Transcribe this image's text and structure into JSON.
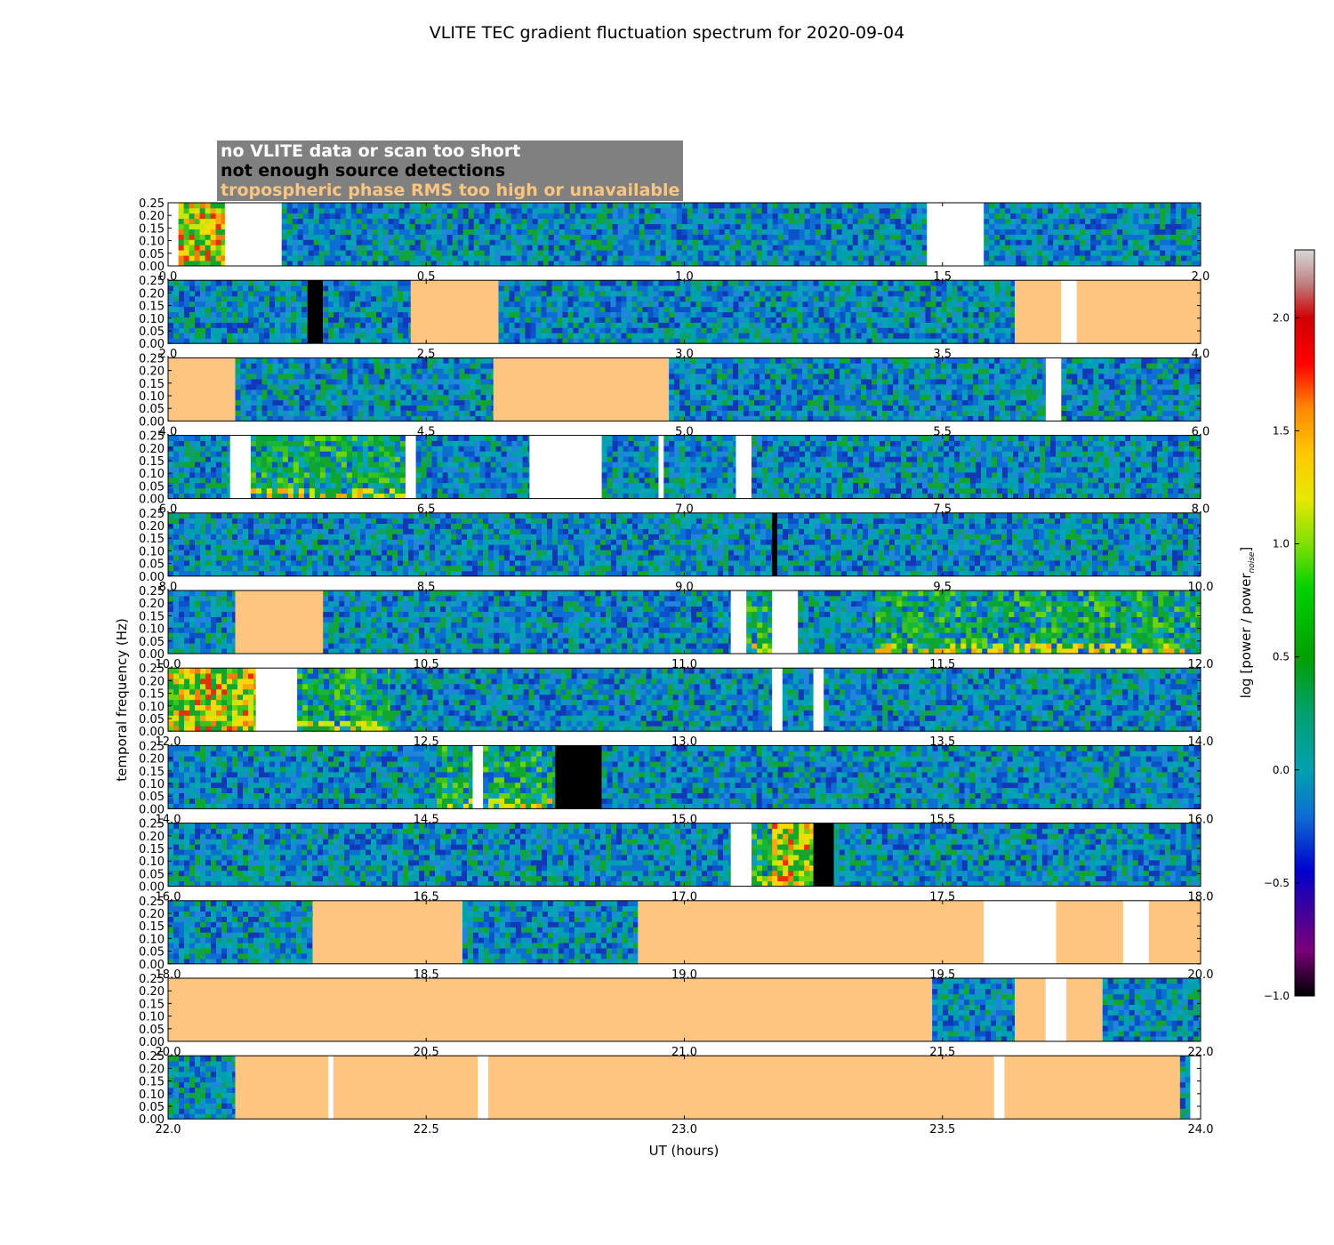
{
  "chart_data": {
    "type": "heatmap",
    "title": "VLITE TEC gradient fluctuation spectrum for 2020-09-04",
    "xlabel": "UT (hours)",
    "ylabel": "temporal frequency (Hz)",
    "colorbar_label": "log [power / power",
    "colorbar_label_sub": "noise",
    "colorbar_label_end": "]",
    "colorbar_range": [
      -1.0,
      2.3
    ],
    "colorbar_ticks": [
      "−1.0",
      "−0.5",
      "0.0",
      "0.5",
      "1.0",
      "1.5",
      "2.0"
    ],
    "colorbar_tick_values": [
      -1.0,
      -0.5,
      0.0,
      0.5,
      1.0,
      1.5,
      2.0
    ],
    "ylim": [
      0,
      0.25
    ],
    "y_ticks": [
      "0.00",
      "0.05",
      "0.10",
      "0.15",
      "0.20",
      "0.25"
    ],
    "y_tick_values": [
      0,
      0.05,
      0.1,
      0.15,
      0.2,
      0.25
    ],
    "legend": [
      {
        "label": "no VLITE data or scan too short",
        "color": "#ffffff"
      },
      {
        "label": "not enough source detections",
        "color": "#000000"
      },
      {
        "label": "tropospheric phase RMS too high or unavailable",
        "color": "#fdc57f"
      }
    ],
    "panels": [
      {
        "xlim": [
          0,
          2
        ],
        "x_ticks": [
          "0.0",
          "0.5",
          "1.0",
          "1.5",
          "2.0"
        ],
        "segments": [
          {
            "start": 0.0,
            "end": 0.02,
            "type": "white"
          },
          {
            "start": 0.02,
            "end": 0.11,
            "type": "data",
            "level": "high"
          },
          {
            "start": 0.11,
            "end": 0.22,
            "type": "white"
          },
          {
            "start": 0.22,
            "end": 1.47,
            "type": "data",
            "level": "low"
          },
          {
            "start": 1.47,
            "end": 1.58,
            "type": "white"
          },
          {
            "start": 1.58,
            "end": 2.0,
            "type": "data",
            "level": "low"
          }
        ]
      },
      {
        "xlim": [
          2,
          4
        ],
        "x_ticks": [
          "2.0",
          "2.5",
          "3.0",
          "3.5",
          "4.0"
        ],
        "segments": [
          {
            "start": 2.0,
            "end": 2.27,
            "type": "data",
            "level": "low"
          },
          {
            "start": 2.27,
            "end": 2.3,
            "type": "black"
          },
          {
            "start": 2.3,
            "end": 2.47,
            "type": "data",
            "level": "low"
          },
          {
            "start": 2.47,
            "end": 2.64,
            "type": "orange"
          },
          {
            "start": 2.64,
            "end": 3.64,
            "type": "data",
            "level": "low"
          },
          {
            "start": 3.64,
            "end": 3.73,
            "type": "orange"
          },
          {
            "start": 3.73,
            "end": 3.76,
            "type": "white"
          },
          {
            "start": 3.76,
            "end": 4.0,
            "type": "orange"
          }
        ]
      },
      {
        "xlim": [
          4,
          6
        ],
        "x_ticks": [
          "4.0",
          "4.5",
          "5.0",
          "5.5",
          "6.0"
        ],
        "segments": [
          {
            "start": 4.0,
            "end": 4.13,
            "type": "orange"
          },
          {
            "start": 4.13,
            "end": 4.63,
            "type": "data",
            "level": "low"
          },
          {
            "start": 4.63,
            "end": 4.97,
            "type": "orange"
          },
          {
            "start": 4.97,
            "end": 5.7,
            "type": "data",
            "level": "low"
          },
          {
            "start": 5.7,
            "end": 5.73,
            "type": "white"
          },
          {
            "start": 5.73,
            "end": 6.0,
            "type": "data",
            "level": "low"
          }
        ]
      },
      {
        "xlim": [
          6,
          8
        ],
        "x_ticks": [
          "6.0",
          "6.5",
          "7.0",
          "7.5",
          "8.0"
        ],
        "segments": [
          {
            "start": 6.0,
            "end": 6.12,
            "type": "data",
            "level": "low"
          },
          {
            "start": 6.12,
            "end": 6.16,
            "type": "white"
          },
          {
            "start": 6.16,
            "end": 6.46,
            "type": "data",
            "level": "mid"
          },
          {
            "start": 6.46,
            "end": 6.48,
            "type": "white"
          },
          {
            "start": 6.48,
            "end": 6.7,
            "type": "data",
            "level": "low"
          },
          {
            "start": 6.7,
            "end": 6.84,
            "type": "white"
          },
          {
            "start": 6.84,
            "end": 6.95,
            "type": "data",
            "level": "low"
          },
          {
            "start": 6.95,
            "end": 6.96,
            "type": "white"
          },
          {
            "start": 6.96,
            "end": 7.1,
            "type": "data",
            "level": "low"
          },
          {
            "start": 7.1,
            "end": 7.13,
            "type": "white"
          },
          {
            "start": 7.13,
            "end": 8.0,
            "type": "data",
            "level": "low"
          }
        ]
      },
      {
        "xlim": [
          8,
          10
        ],
        "x_ticks": [
          "8.0",
          "8.5",
          "9.0",
          "9.5",
          "10.0"
        ],
        "segments": [
          {
            "start": 8.0,
            "end": 9.17,
            "type": "data",
            "level": "low"
          },
          {
            "start": 9.17,
            "end": 9.18,
            "type": "black"
          },
          {
            "start": 9.18,
            "end": 10.0,
            "type": "data",
            "level": "low"
          }
        ]
      },
      {
        "xlim": [
          10,
          12
        ],
        "x_ticks": [
          "10.0",
          "10.5",
          "11.0",
          "11.5",
          "12.0"
        ],
        "segments": [
          {
            "start": 10.0,
            "end": 10.13,
            "type": "data",
            "level": "low"
          },
          {
            "start": 10.13,
            "end": 10.3,
            "type": "orange"
          },
          {
            "start": 10.3,
            "end": 11.09,
            "type": "data",
            "level": "low"
          },
          {
            "start": 11.09,
            "end": 11.12,
            "type": "white"
          },
          {
            "start": 11.12,
            "end": 11.17,
            "type": "data",
            "level": "mid"
          },
          {
            "start": 11.17,
            "end": 11.22,
            "type": "white"
          },
          {
            "start": 11.22,
            "end": 11.37,
            "type": "data",
            "level": "low"
          },
          {
            "start": 11.37,
            "end": 12.0,
            "type": "data",
            "level": "mid"
          }
        ]
      },
      {
        "xlim": [
          12,
          14
        ],
        "x_ticks": [
          "12.0",
          "12.5",
          "13.0",
          "13.5",
          "14.0"
        ],
        "segments": [
          {
            "start": 12.0,
            "end": 12.17,
            "type": "data",
            "level": "high"
          },
          {
            "start": 12.17,
            "end": 12.25,
            "type": "white"
          },
          {
            "start": 12.25,
            "end": 12.43,
            "type": "data",
            "level": "mid"
          },
          {
            "start": 12.43,
            "end": 13.17,
            "type": "data",
            "level": "low"
          },
          {
            "start": 13.17,
            "end": 13.19,
            "type": "white"
          },
          {
            "start": 13.19,
            "end": 13.25,
            "type": "data",
            "level": "low"
          },
          {
            "start": 13.25,
            "end": 13.27,
            "type": "white"
          },
          {
            "start": 13.27,
            "end": 14.0,
            "type": "data",
            "level": "low"
          }
        ]
      },
      {
        "xlim": [
          14,
          16
        ],
        "x_ticks": [
          "14.0",
          "14.5",
          "15.0",
          "15.5",
          "16.0"
        ],
        "segments": [
          {
            "start": 14.0,
            "end": 14.52,
            "type": "data",
            "level": "low"
          },
          {
            "start": 14.52,
            "end": 14.59,
            "type": "data",
            "level": "mid"
          },
          {
            "start": 14.59,
            "end": 14.61,
            "type": "white"
          },
          {
            "start": 14.61,
            "end": 14.75,
            "type": "data",
            "level": "mid"
          },
          {
            "start": 14.75,
            "end": 14.84,
            "type": "black"
          },
          {
            "start": 14.84,
            "end": 16.0,
            "type": "data",
            "level": "low"
          }
        ]
      },
      {
        "xlim": [
          16,
          18
        ],
        "x_ticks": [
          "16.0",
          "16.5",
          "17.0",
          "17.5",
          "18.0"
        ],
        "segments": [
          {
            "start": 16.0,
            "end": 17.09,
            "type": "data",
            "level": "low"
          },
          {
            "start": 17.09,
            "end": 17.13,
            "type": "white"
          },
          {
            "start": 17.13,
            "end": 17.17,
            "type": "data",
            "level": "mid"
          },
          {
            "start": 17.17,
            "end": 17.25,
            "type": "data",
            "level": "high"
          },
          {
            "start": 17.25,
            "end": 17.29,
            "type": "black"
          },
          {
            "start": 17.29,
            "end": 18.0,
            "type": "data",
            "level": "low"
          }
        ]
      },
      {
        "xlim": [
          18,
          20
        ],
        "x_ticks": [
          "18.0",
          "18.5",
          "19.0",
          "19.5",
          "20.0"
        ],
        "segments": [
          {
            "start": 18.0,
            "end": 18.28,
            "type": "data",
            "level": "low"
          },
          {
            "start": 18.28,
            "end": 18.57,
            "type": "orange"
          },
          {
            "start": 18.57,
            "end": 18.91,
            "type": "data",
            "level": "low"
          },
          {
            "start": 18.91,
            "end": 19.58,
            "type": "orange"
          },
          {
            "start": 19.58,
            "end": 19.72,
            "type": "white"
          },
          {
            "start": 19.72,
            "end": 19.85,
            "type": "orange"
          },
          {
            "start": 19.85,
            "end": 19.9,
            "type": "white"
          },
          {
            "start": 19.9,
            "end": 20.0,
            "type": "orange"
          }
        ]
      },
      {
        "xlim": [
          20,
          22
        ],
        "x_ticks": [
          "20.0",
          "20.5",
          "21.0",
          "21.5",
          "22.0"
        ],
        "segments": [
          {
            "start": 20.0,
            "end": 21.48,
            "type": "orange"
          },
          {
            "start": 21.48,
            "end": 21.64,
            "type": "data",
            "level": "low"
          },
          {
            "start": 21.64,
            "end": 21.7,
            "type": "orange"
          },
          {
            "start": 21.7,
            "end": 21.74,
            "type": "white"
          },
          {
            "start": 21.74,
            "end": 21.81,
            "type": "orange"
          },
          {
            "start": 21.81,
            "end": 22.0,
            "type": "data",
            "level": "low"
          }
        ]
      },
      {
        "xlim": [
          22,
          24
        ],
        "x_ticks": [
          "22.0",
          "22.5",
          "23.0",
          "23.5",
          "24.0"
        ],
        "segments": [
          {
            "start": 22.0,
            "end": 22.13,
            "type": "data",
            "level": "low"
          },
          {
            "start": 22.13,
            "end": 22.31,
            "type": "orange"
          },
          {
            "start": 22.31,
            "end": 22.32,
            "type": "white"
          },
          {
            "start": 22.32,
            "end": 22.6,
            "type": "orange"
          },
          {
            "start": 22.6,
            "end": 22.62,
            "type": "white"
          },
          {
            "start": 22.62,
            "end": 23.6,
            "type": "orange"
          },
          {
            "start": 23.6,
            "end": 23.62,
            "type": "white"
          },
          {
            "start": 23.62,
            "end": 23.96,
            "type": "orange"
          },
          {
            "start": 23.96,
            "end": 23.98,
            "type": "data",
            "level": "low"
          },
          {
            "start": 23.98,
            "end": 24.0,
            "type": "white"
          }
        ]
      }
    ]
  }
}
